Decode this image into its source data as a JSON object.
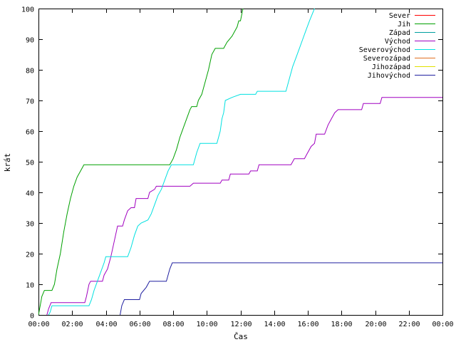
{
  "chart_data": {
    "type": "line",
    "xlabel": "Čas",
    "ylabel": "krát",
    "xlim": [
      0,
      24
    ],
    "ylim": [
      0,
      100
    ],
    "x_tick_labels": [
      "00:00",
      "02:00",
      "04:00",
      "06:00",
      "08:00",
      "10:00",
      "12:00",
      "14:00",
      "16:00",
      "18:00",
      "20:00",
      "22:00",
      "00:00"
    ],
    "y_tick_labels": [
      "0",
      "10",
      "20",
      "30",
      "40",
      "50",
      "60",
      "70",
      "80",
      "90",
      "100"
    ],
    "grid": false,
    "legend_position": "top-right",
    "series": [
      {
        "name": "Sever",
        "color": "#ff0000",
        "points": []
      },
      {
        "name": "Jih",
        "color": "#00a000",
        "points": [
          [
            0.0,
            0
          ],
          [
            0.1,
            3
          ],
          [
            0.2,
            6
          ],
          [
            0.35,
            8
          ],
          [
            0.8,
            8
          ],
          [
            0.95,
            10
          ],
          [
            1.1,
            15
          ],
          [
            1.3,
            20
          ],
          [
            1.5,
            27
          ],
          [
            1.7,
            33
          ],
          [
            1.9,
            38
          ],
          [
            2.1,
            42
          ],
          [
            2.3,
            45
          ],
          [
            2.5,
            47
          ],
          [
            2.7,
            49
          ],
          [
            7.8,
            49
          ],
          [
            8.0,
            51
          ],
          [
            8.2,
            54
          ],
          [
            8.4,
            58
          ],
          [
            8.6,
            61
          ],
          [
            8.8,
            64
          ],
          [
            9.0,
            67
          ],
          [
            9.1,
            68
          ],
          [
            9.4,
            68
          ],
          [
            9.5,
            70
          ],
          [
            9.7,
            72
          ],
          [
            9.9,
            76
          ],
          [
            10.1,
            80
          ],
          [
            10.3,
            85
          ],
          [
            10.5,
            87
          ],
          [
            11.0,
            87
          ],
          [
            11.2,
            89
          ],
          [
            11.5,
            91
          ],
          [
            11.8,
            94
          ],
          [
            11.9,
            96
          ],
          [
            12.0,
            96
          ],
          [
            12.15,
            100
          ]
        ]
      },
      {
        "name": "Západ",
        "color": "#00a0a0",
        "points": []
      },
      {
        "name": "Východ",
        "color": "#a000c0",
        "points": [
          [
            0.5,
            0
          ],
          [
            0.6,
            2
          ],
          [
            0.75,
            4
          ],
          [
            2.75,
            4
          ],
          [
            2.85,
            6
          ],
          [
            3.0,
            10
          ],
          [
            3.1,
            11
          ],
          [
            3.8,
            11
          ],
          [
            3.9,
            13
          ],
          [
            4.1,
            15
          ],
          [
            4.3,
            19
          ],
          [
            4.5,
            24
          ],
          [
            4.7,
            29
          ],
          [
            5.0,
            29
          ],
          [
            5.1,
            31
          ],
          [
            5.3,
            34
          ],
          [
            5.5,
            35
          ],
          [
            5.7,
            35
          ],
          [
            5.8,
            38
          ],
          [
            6.5,
            38
          ],
          [
            6.6,
            40
          ],
          [
            6.9,
            41
          ],
          [
            7.0,
            42
          ],
          [
            9.0,
            42
          ],
          [
            9.2,
            43
          ],
          [
            10.8,
            43
          ],
          [
            10.9,
            44
          ],
          [
            11.3,
            44
          ],
          [
            11.4,
            46
          ],
          [
            12.5,
            46
          ],
          [
            12.6,
            47
          ],
          [
            13.0,
            47
          ],
          [
            13.1,
            49
          ],
          [
            15.0,
            49
          ],
          [
            15.2,
            51
          ],
          [
            15.8,
            51
          ],
          [
            15.9,
            52
          ],
          [
            16.2,
            55
          ],
          [
            16.4,
            56
          ],
          [
            16.5,
            59
          ],
          [
            17.0,
            59
          ],
          [
            17.2,
            62
          ],
          [
            17.4,
            64
          ],
          [
            17.6,
            66
          ],
          [
            17.8,
            67
          ],
          [
            19.2,
            67
          ],
          [
            19.3,
            69
          ],
          [
            20.3,
            69
          ],
          [
            20.4,
            71
          ],
          [
            24.0,
            71
          ]
        ]
      },
      {
        "name": "Severovýchod",
        "color": "#00e0e0",
        "points": [
          [
            0.6,
            0
          ],
          [
            0.7,
            1
          ],
          [
            0.8,
            3
          ],
          [
            3.0,
            3
          ],
          [
            3.15,
            5
          ],
          [
            3.3,
            8
          ],
          [
            3.5,
            11
          ],
          [
            3.7,
            14
          ],
          [
            3.9,
            17
          ],
          [
            4.0,
            19
          ],
          [
            5.3,
            19
          ],
          [
            5.5,
            22
          ],
          [
            5.7,
            26
          ],
          [
            5.9,
            29
          ],
          [
            6.1,
            30
          ],
          [
            6.5,
            31
          ],
          [
            6.7,
            33
          ],
          [
            6.9,
            36
          ],
          [
            7.1,
            39
          ],
          [
            7.3,
            41
          ],
          [
            7.5,
            44
          ],
          [
            7.7,
            47
          ],
          [
            7.9,
            49
          ],
          [
            9.2,
            49
          ],
          [
            9.4,
            53
          ],
          [
            9.6,
            56
          ],
          [
            10.6,
            56
          ],
          [
            10.8,
            60
          ],
          [
            10.9,
            64
          ],
          [
            11.0,
            66
          ],
          [
            11.1,
            70
          ],
          [
            11.5,
            71
          ],
          [
            12.0,
            72
          ],
          [
            12.9,
            72
          ],
          [
            13.0,
            73
          ],
          [
            14.7,
            73
          ],
          [
            14.9,
            77
          ],
          [
            15.1,
            81
          ],
          [
            15.3,
            84
          ],
          [
            15.5,
            87
          ],
          [
            15.7,
            90
          ],
          [
            15.9,
            93
          ],
          [
            16.1,
            96
          ],
          [
            16.4,
            100
          ]
        ]
      },
      {
        "name": "Severozápad",
        "color": "#e07020",
        "points": []
      },
      {
        "name": "Jihozápad",
        "color": "#e0e000",
        "points": []
      },
      {
        "name": "Jihovýchod",
        "color": "#2020a0",
        "points": [
          [
            4.85,
            0
          ],
          [
            4.95,
            3
          ],
          [
            5.1,
            5
          ],
          [
            6.0,
            5
          ],
          [
            6.1,
            7
          ],
          [
            6.4,
            9
          ],
          [
            6.6,
            11
          ],
          [
            7.6,
            11
          ],
          [
            7.8,
            15
          ],
          [
            7.95,
            17
          ],
          [
            24.0,
            17
          ]
        ]
      }
    ]
  }
}
